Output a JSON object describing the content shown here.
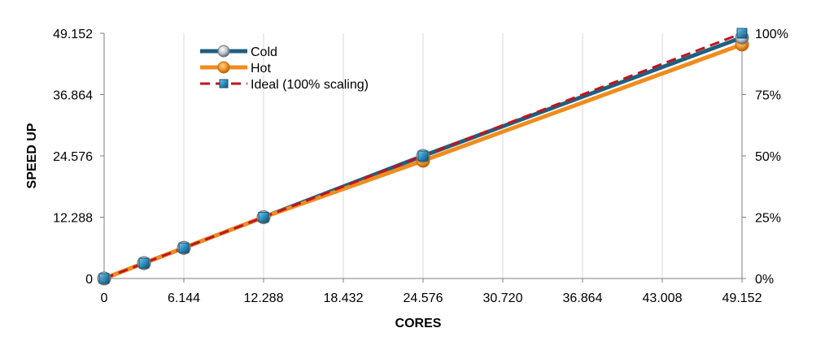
{
  "chart_data": {
    "type": "line",
    "xlabel": "CORES",
    "ylabel": "SPEED UP",
    "x_ticks": [
      "0",
      "6.144",
      "12.288",
      "18.432",
      "24.576",
      "30.720",
      "36.864",
      "43.008",
      "49.152"
    ],
    "y_ticks": [
      "0",
      "12.288",
      "24.576",
      "36.864",
      "49.152"
    ],
    "y2_ticks": [
      "0%",
      "25%",
      "50%",
      "75%",
      "100%"
    ],
    "xlim": [
      0,
      49152
    ],
    "ylim": [
      0,
      49152
    ],
    "grid": "vertical",
    "legend": "top-left",
    "series": [
      {
        "name": "Cold",
        "color": "#1f5f7f",
        "marker": "circle-gray",
        "x": [
          0,
          3072,
          6144,
          12288,
          24576,
          49152
        ],
        "y": [
          0,
          3072,
          6144,
          12288,
          24576,
          48300
        ]
      },
      {
        "name": "Hot",
        "color": "#f08c1e",
        "marker": "circle-orange",
        "x": [
          0,
          3072,
          6144,
          12288,
          24576,
          49152
        ],
        "y": [
          0,
          3072,
          6144,
          12288,
          23600,
          46900
        ]
      },
      {
        "name": "Ideal (100% scaling)",
        "color": "#c0141e",
        "line_style": "dashed",
        "marker": "square-blue",
        "x": [
          0,
          3072,
          6144,
          12288,
          24576,
          49152
        ],
        "y": [
          0,
          3072,
          6144,
          12288,
          24576,
          49152
        ]
      }
    ]
  }
}
